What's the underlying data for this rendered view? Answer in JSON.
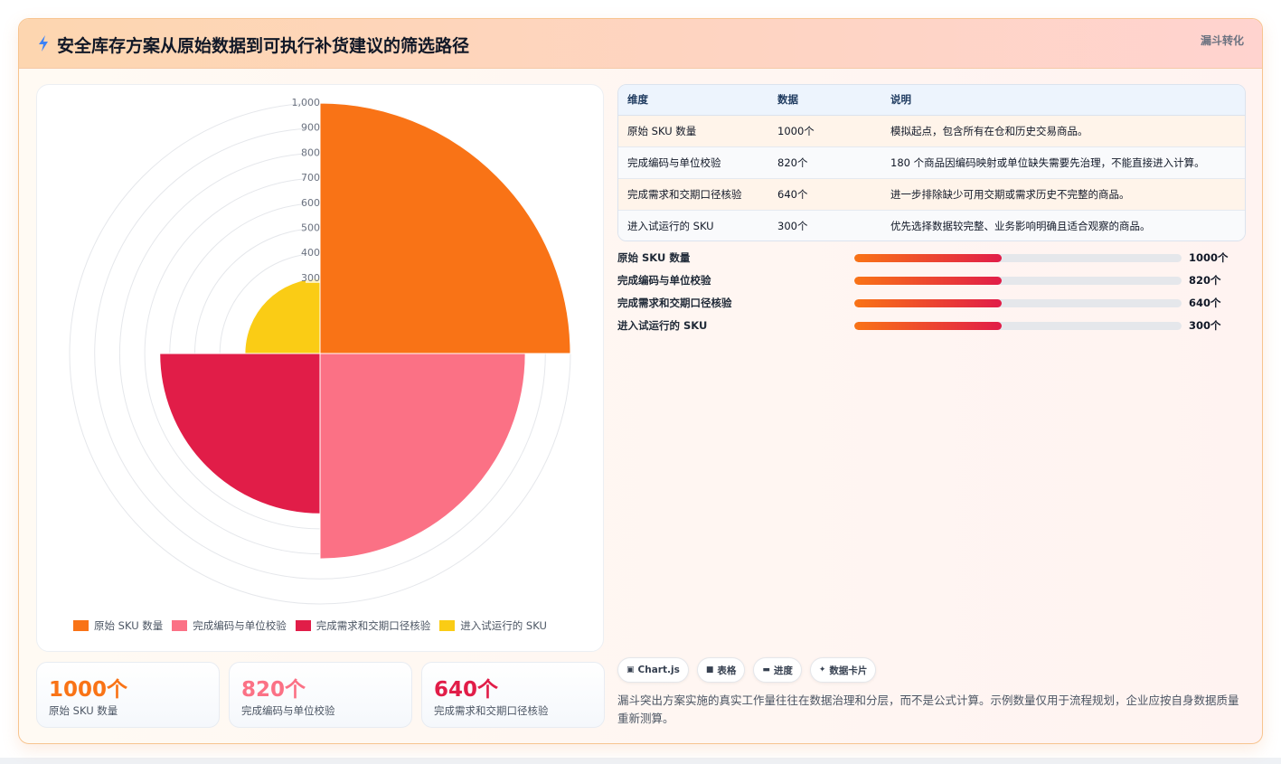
{
  "header": {
    "title": "安全库存方案从原始数据到可执行补货建议的筛选路径",
    "tag": "漏斗转化",
    "icon": "bolt-icon"
  },
  "chart_data": {
    "type": "polarArea",
    "categories": [
      "原始 SKU 数量",
      "完成编码与单位校验",
      "完成需求和交期口径核验",
      "进入试运行的 SKU"
    ],
    "values": [
      1000,
      820,
      640,
      300
    ],
    "colors": [
      "#f97316",
      "#fb7185",
      "#e11d48",
      "#facc15"
    ],
    "r_max": 1000,
    "r_ticks": [
      "300",
      "400",
      "500",
      "600",
      "700",
      "800",
      "900",
      "1,000"
    ],
    "legend_position": "bottom",
    "grid": true
  },
  "stats": [
    {
      "value": "1000个",
      "label": "原始 SKU 数量",
      "color": "#f97316"
    },
    {
      "value": "820个",
      "label": "完成编码与单位校验",
      "color": "#fb7185"
    },
    {
      "value": "640个",
      "label": "完成需求和交期口径核验",
      "color": "#e11d48"
    }
  ],
  "table": {
    "headers": [
      "维度",
      "数据",
      "说明"
    ],
    "rows": [
      [
        "原始 SKU 数量",
        "1000个",
        "模拟起点，包含所有在仓和历史交易商品。"
      ],
      [
        "完成编码与单位校验",
        "820个",
        "180 个商品因编码映射或单位缺失需要先治理，不能直接进入计算。"
      ],
      [
        "完成需求和交期口径核验",
        "640个",
        "进一步排除缺少可用交期或需求历史不完整的商品。"
      ],
      [
        "进入试运行的 SKU",
        "300个",
        "优先选择数据较完整、业务影响明确且适合观察的商品。"
      ]
    ]
  },
  "progress": [
    {
      "label": "原始 SKU 数量",
      "value": "1000个",
      "fill": 0.45
    },
    {
      "label": "完成编码与单位校验",
      "value": "820个",
      "fill": 0.45
    },
    {
      "label": "完成需求和交期口径核验",
      "value": "640个",
      "fill": 0.45
    },
    {
      "label": "进入试运行的 SKU",
      "value": "300个",
      "fill": 0.45
    }
  ],
  "chips": [
    {
      "icon": "chart-icon",
      "glyph": "▣",
      "label": "Chart.js"
    },
    {
      "icon": "table-icon",
      "glyph": "■",
      "label": "表格"
    },
    {
      "icon": "progress-icon",
      "glyph": "▬",
      "label": "进度"
    },
    {
      "icon": "sparkle-icon",
      "glyph": "✦",
      "label": "数据卡片"
    }
  ],
  "note": "漏斗突出方案实施的真实工作量往往在数据治理和分层，而不是公式计算。示例数量仅用于流程规划，企业应按自身数据质量重新测算。"
}
